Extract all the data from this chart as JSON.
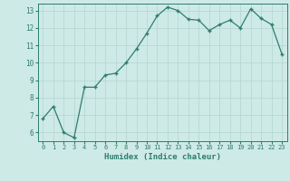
{
  "x": [
    0,
    1,
    2,
    3,
    4,
    5,
    6,
    7,
    8,
    9,
    10,
    11,
    12,
    13,
    14,
    15,
    16,
    17,
    18,
    19,
    20,
    21,
    22,
    23
  ],
  "y": [
    6.8,
    7.5,
    6.0,
    5.7,
    8.6,
    8.6,
    9.3,
    9.4,
    10.0,
    10.8,
    11.7,
    12.7,
    13.2,
    13.0,
    12.5,
    12.45,
    11.85,
    12.2,
    12.45,
    12.0,
    13.1,
    12.55,
    12.2,
    10.5
  ],
  "xlabel": "Humidex (Indice chaleur)",
  "ylim_min": 5.5,
  "ylim_max": 13.4,
  "xlim_min": -0.5,
  "xlim_max": 23.5,
  "line_color": "#2e7d6e",
  "bg_color": "#ceeae6",
  "grid_color": "#b8d8d4",
  "tick_color": "#2e7d6e",
  "label_color": "#2e7d6e",
  "yticks": [
    6,
    7,
    8,
    9,
    10,
    11,
    12,
    13
  ],
  "xticks": [
    0,
    1,
    2,
    3,
    4,
    5,
    6,
    7,
    8,
    9,
    10,
    11,
    12,
    13,
    14,
    15,
    16,
    17,
    18,
    19,
    20,
    21,
    22,
    23
  ]
}
